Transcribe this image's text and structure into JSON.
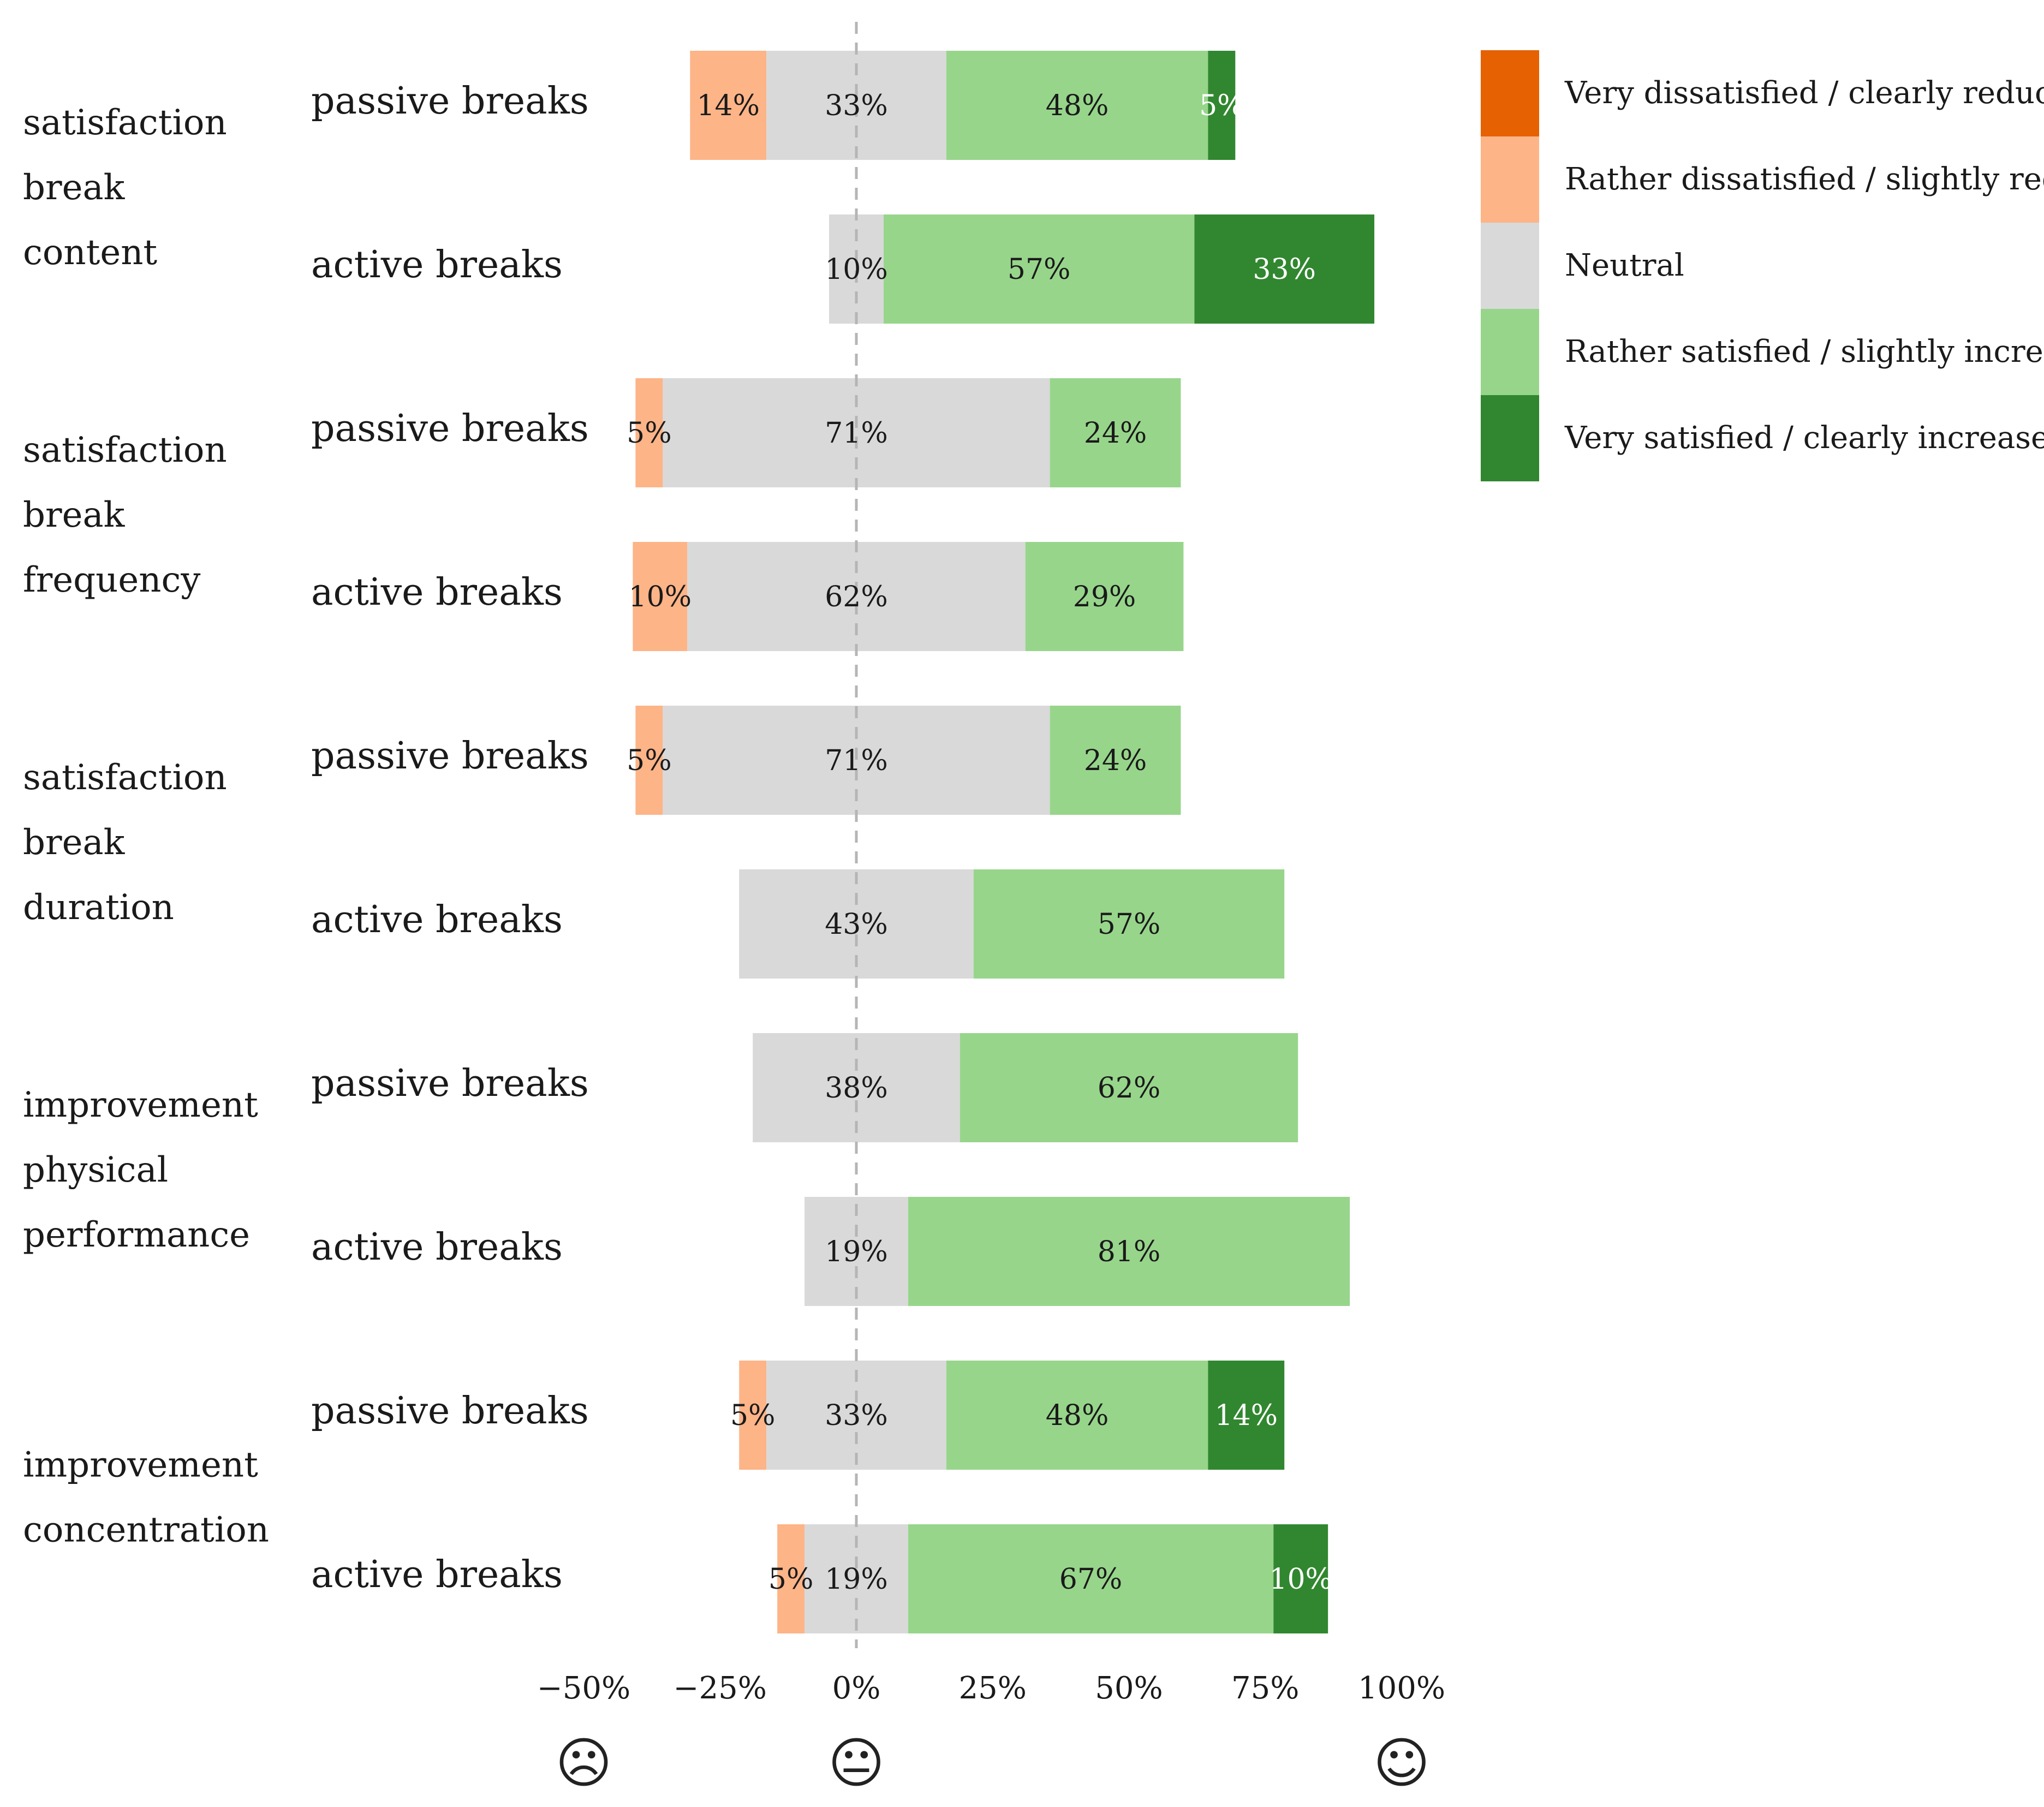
{
  "chart_data": {
    "type": "bar",
    "orientation": "horizontal",
    "stacked": true,
    "diverging": true,
    "xlim": [
      -50,
      100
    ],
    "x_ticks": [
      -50,
      -25,
      0,
      25,
      50,
      75,
      100
    ],
    "x_tick_labels": [
      "−50%",
      "−25%",
      "0%",
      "25%",
      "50%",
      "75%",
      "100%"
    ],
    "reference_line": 0,
    "categories": [
      {
        "name": "Very dissatisfied / clearly reduced",
        "color": "#e66101"
      },
      {
        "name": "Rather dissatisfied / slightly reduced",
        "color": "#fdb487"
      },
      {
        "name": "Neutral",
        "color": "#d9d9d9"
      },
      {
        "name": "Rather satisfied / slightly increased",
        "color": "#97d58b"
      },
      {
        "name": "Very satisfied / clearly increased",
        "color": "#31872f"
      }
    ],
    "groups": [
      {
        "label_lines": [
          "satisfaction",
          "break",
          "content"
        ],
        "rows": [
          {
            "label": "passive breaks",
            "values": [
              0,
              14,
              33,
              48,
              5
            ],
            "value_labels": [
              "",
              "14%",
              "33%",
              "48%",
              "5%"
            ]
          },
          {
            "label": "active breaks",
            "values": [
              0,
              0,
              10,
              57,
              33
            ],
            "value_labels": [
              "",
              "",
              "10%",
              "57%",
              "33%"
            ]
          }
        ]
      },
      {
        "label_lines": [
          "satisfaction",
          "break",
          "frequency"
        ],
        "rows": [
          {
            "label": "passive breaks",
            "values": [
              0,
              5,
              71,
              24,
              0
            ],
            "value_labels": [
              "",
              "5%",
              "71%",
              "24%",
              ""
            ]
          },
          {
            "label": "active breaks",
            "values": [
              0,
              10,
              62,
              29,
              0
            ],
            "value_labels": [
              "",
              "10%",
              "62%",
              "29%",
              ""
            ]
          }
        ]
      },
      {
        "label_lines": [
          "satisfaction",
          "break",
          "duration"
        ],
        "rows": [
          {
            "label": "passive breaks",
            "values": [
              0,
              5,
              71,
              24,
              0
            ],
            "value_labels": [
              "",
              "5%",
              "71%",
              "24%",
              ""
            ]
          },
          {
            "label": "active breaks",
            "values": [
              0,
              0,
              43,
              57,
              0
            ],
            "value_labels": [
              "",
              "",
              "43%",
              "57%",
              ""
            ]
          }
        ]
      },
      {
        "label_lines": [
          "improvement",
          "physical",
          "performance"
        ],
        "rows": [
          {
            "label": "passive breaks",
            "values": [
              0,
              0,
              38,
              62,
              0
            ],
            "value_labels": [
              "",
              "",
              "38%",
              "62%",
              ""
            ]
          },
          {
            "label": "active breaks",
            "values": [
              0,
              0,
              19,
              81,
              0
            ],
            "value_labels": [
              "",
              "",
              "19%",
              "81%",
              ""
            ]
          }
        ]
      },
      {
        "label_lines": [
          "improvement",
          "concentration"
        ],
        "rows": [
          {
            "label": "passive breaks",
            "values": [
              0,
              5,
              33,
              48,
              14
            ],
            "value_labels": [
              "",
              "5%",
              "33%",
              "48%",
              "14%"
            ]
          },
          {
            "label": "active breaks",
            "values": [
              0,
              5,
              19,
              67,
              10
            ],
            "value_labels": [
              "",
              "5%",
              "19%",
              "67%",
              "10%"
            ]
          }
        ]
      }
    ],
    "face_markers": [
      {
        "at": -50,
        "glyph": "☹",
        "icon": "frown-face-icon"
      },
      {
        "at": 0,
        "glyph": "😐",
        "icon": "neutral-face-icon"
      },
      {
        "at": 100,
        "glyph": "☺",
        "icon": "smile-face-icon"
      }
    ]
  }
}
